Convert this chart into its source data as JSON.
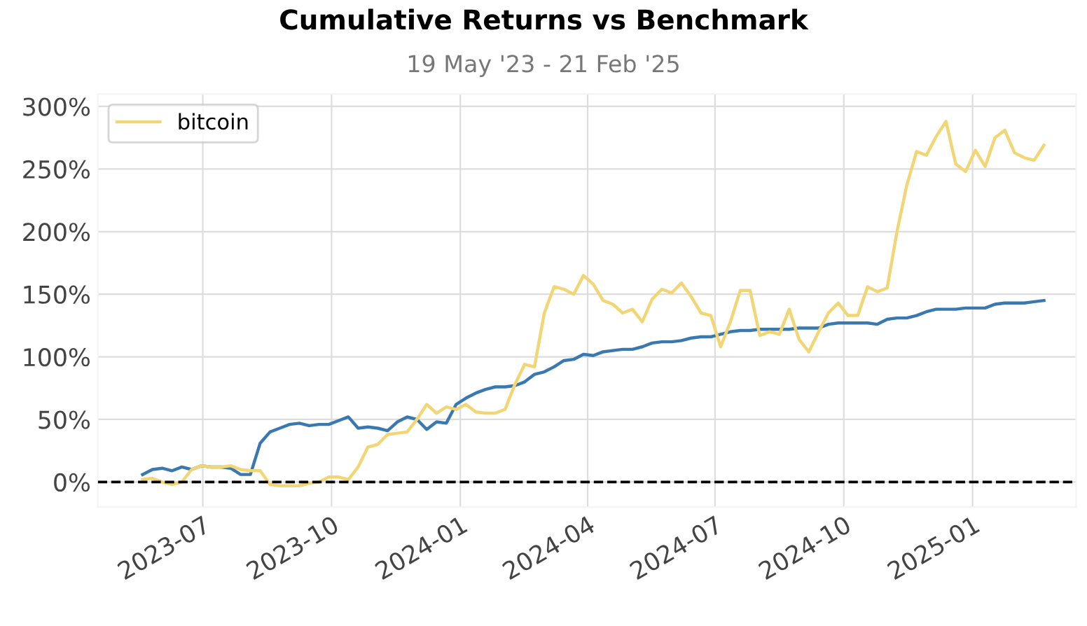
{
  "chart_data": {
    "type": "line",
    "title": "Cumulative Returns vs Benchmark",
    "subtitle": "19 May '23 - 21 Feb '25",
    "x": [
      "2023-05-19",
      "2023-05-26",
      "2023-06-02",
      "2023-06-09",
      "2023-06-16",
      "2023-06-23",
      "2023-06-30",
      "2023-07-07",
      "2023-07-14",
      "2023-07-21",
      "2023-07-28",
      "2023-08-04",
      "2023-08-11",
      "2023-08-18",
      "2023-08-25",
      "2023-09-01",
      "2023-09-08",
      "2023-09-15",
      "2023-09-22",
      "2023-09-29",
      "2023-10-06",
      "2023-10-13",
      "2023-10-20",
      "2023-10-27",
      "2023-11-03",
      "2023-11-10",
      "2023-11-17",
      "2023-11-24",
      "2023-12-01",
      "2023-12-08",
      "2023-12-15",
      "2023-12-22",
      "2023-12-29",
      "2024-01-05",
      "2024-01-12",
      "2024-01-19",
      "2024-01-26",
      "2024-02-02",
      "2024-02-09",
      "2024-02-16",
      "2024-02-23",
      "2024-03-01",
      "2024-03-08",
      "2024-03-15",
      "2024-03-22",
      "2024-03-29",
      "2024-04-05",
      "2024-04-12",
      "2024-04-19",
      "2024-04-26",
      "2024-05-03",
      "2024-05-10",
      "2024-05-17",
      "2024-05-24",
      "2024-05-31",
      "2024-06-07",
      "2024-06-14",
      "2024-06-21",
      "2024-06-28",
      "2024-07-05",
      "2024-07-12",
      "2024-07-19",
      "2024-07-26",
      "2024-08-02",
      "2024-08-09",
      "2024-08-16",
      "2024-08-23",
      "2024-08-30",
      "2024-09-06",
      "2024-09-13",
      "2024-09-20",
      "2024-09-27",
      "2024-10-04",
      "2024-10-11",
      "2024-10-18",
      "2024-10-25",
      "2024-11-01",
      "2024-11-08",
      "2024-11-15",
      "2024-11-22",
      "2024-11-29",
      "2024-12-06",
      "2024-12-13",
      "2024-12-20",
      "2024-12-27",
      "2025-01-03",
      "2025-01-10",
      "2025-01-17",
      "2025-01-24",
      "2025-01-31",
      "2025-02-07",
      "2025-02-14",
      "2025-02-21"
    ],
    "series": [
      {
        "name": "bitcoin",
        "color": "#f2d675",
        "values": [
          2,
          3,
          0,
          -2,
          0,
          10,
          13,
          12,
          12,
          13,
          10,
          9,
          9,
          -2,
          -3,
          -3,
          -3,
          -1,
          0,
          4,
          4,
          2,
          12,
          28,
          30,
          38,
          39,
          40,
          50,
          62,
          55,
          60,
          58,
          62,
          56,
          55,
          55,
          58,
          78,
          94,
          92,
          135,
          156,
          154,
          150,
          165,
          158,
          145,
          142,
          135,
          138,
          128,
          146,
          154,
          151,
          159,
          148,
          135,
          133,
          108,
          128,
          153,
          153,
          117,
          120,
          118,
          138,
          114,
          104,
          120,
          135,
          143,
          133,
          133,
          156,
          152,
          155,
          200,
          237,
          264,
          261,
          276,
          288,
          254,
          248,
          265,
          252,
          275,
          281,
          263,
          259,
          257,
          269
        ]
      },
      {
        "color": "#3a78b0",
        "values": [
          6,
          10,
          11,
          9,
          12,
          10,
          13,
          12,
          12,
          11,
          6,
          6,
          31,
          40,
          43,
          46,
          47,
          45,
          46,
          46,
          49,
          52,
          43,
          44,
          43,
          41,
          48,
          52,
          50,
          42,
          48,
          47,
          62,
          67,
          71,
          74,
          76,
          76,
          77,
          80,
          86,
          88,
          92,
          97,
          98,
          102,
          101,
          104,
          105,
          106,
          106,
          108,
          111,
          112,
          112,
          113,
          115,
          116,
          116,
          118,
          120,
          121,
          121,
          122,
          122,
          122,
          122,
          123,
          123,
          123,
          126,
          127,
          127,
          127,
          127,
          126,
          130,
          131,
          131,
          133,
          136,
          138,
          138,
          138,
          139,
          139,
          139,
          142,
          143,
          143,
          143,
          144,
          145
        ]
      }
    ],
    "xlim": [
      "2023-04-17",
      "2025-03-16"
    ],
    "xticks": [
      {
        "value": "2023-07-01",
        "label": "2023-07"
      },
      {
        "value": "2023-10-01",
        "label": "2023-10"
      },
      {
        "value": "2024-01-01",
        "label": "2024-01"
      },
      {
        "value": "2024-04-01",
        "label": "2024-04"
      },
      {
        "value": "2024-07-01",
        "label": "2024-07"
      },
      {
        "value": "2024-10-01",
        "label": "2024-10"
      },
      {
        "value": "2025-01-01",
        "label": "2025-01"
      }
    ],
    "ylim": [
      -20,
      310
    ],
    "yticks": [
      {
        "value": 0,
        "label": "0%"
      },
      {
        "value": 50,
        "label": "50%"
      },
      {
        "value": 100,
        "label": "100%"
      },
      {
        "value": 150,
        "label": "150%"
      },
      {
        "value": 200,
        "label": "200%"
      },
      {
        "value": 250,
        "label": "250%"
      },
      {
        "value": 300,
        "label": "300%"
      }
    ],
    "ref_lines": [
      {
        "axis": "y",
        "value": 0,
        "color": "#000000",
        "line_style": "dashed"
      }
    ],
    "grid": true,
    "legend": "top left",
    "line_style": "solid",
    "marker": "none"
  }
}
